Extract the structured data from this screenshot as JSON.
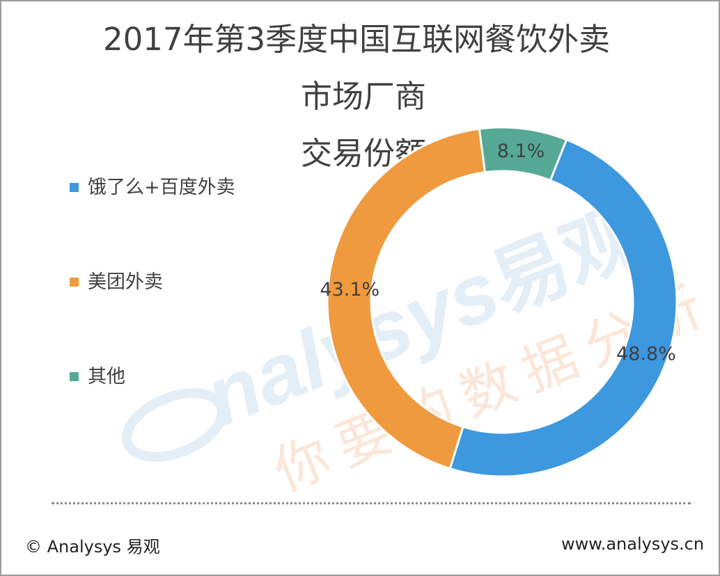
{
  "chart_data": {
    "type": "pie",
    "variant": "donut",
    "title_lines": [
      "2017年第3季度中国互联网餐饮外卖",
      "市场厂商",
      "交易份额"
    ],
    "slices": [
      {
        "name": "饿了么+百度外卖",
        "value": 48.8,
        "label": "48.8%",
        "color": "#3d98de"
      },
      {
        "name": "美团外卖",
        "value": 43.1,
        "label": "43.1%",
        "color": "#ef9a3e"
      },
      {
        "name": "其他",
        "value": 8.1,
        "label": "8.1%",
        "color": "#55a995"
      }
    ],
    "legend_position": "left"
  },
  "footer": {
    "copyright": "© Analysys 易观",
    "website": "www.analysys.cn"
  },
  "watermark": {
    "brand": "nalysys",
    "brand_cn": "易观",
    "slogan": "你要的数据分析"
  }
}
